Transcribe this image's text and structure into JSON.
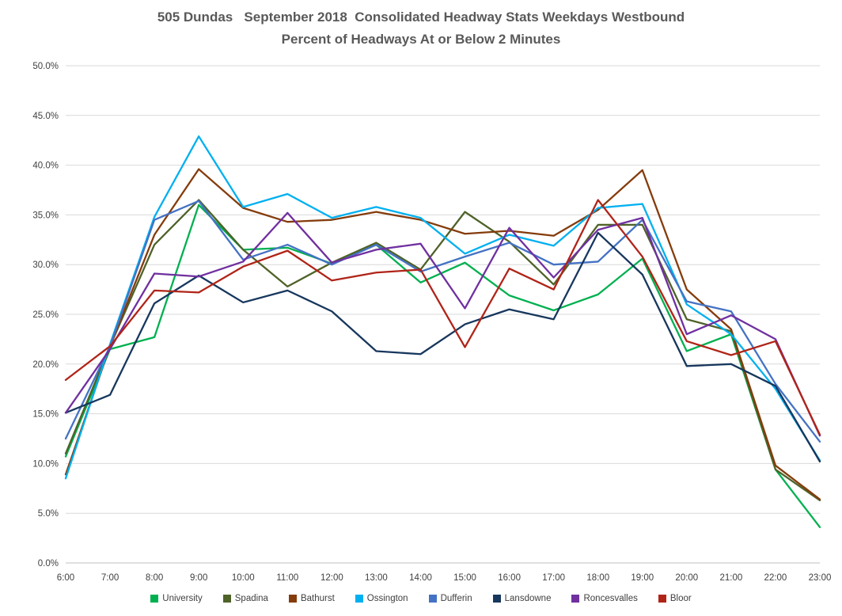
{
  "title": {
    "line1": "505 Dundas   September 2018  Consolidated Headway Stats Weekdays Westbound",
    "line2": "Percent of Headways At or Below 2 Minutes"
  },
  "chart_data": {
    "type": "line",
    "title": "505 Dundas September 2018 Consolidated Headway Stats Weekdays Westbound — Percent of Headways At or Below 2 Minutes",
    "xlabel": "",
    "ylabel": "",
    "ylim": [
      0,
      50
    ],
    "ytick_step": 5,
    "ytick_format": "percent_one_decimal",
    "grid": "horizontal",
    "legend_position": "bottom",
    "categories": [
      "6:00",
      "7:00",
      "8:00",
      "9:00",
      "10:00",
      "11:00",
      "12:00",
      "13:00",
      "14:00",
      "15:00",
      "16:00",
      "17:00",
      "18:00",
      "19:00",
      "20:00",
      "21:00",
      "22:00",
      "23:00"
    ],
    "series": [
      {
        "name": "University",
        "color": "#00B050",
        "values": [
          10.7,
          21.5,
          22.7,
          36.0,
          31.5,
          31.7,
          30.1,
          32.0,
          28.2,
          30.2,
          26.9,
          25.4,
          27.0,
          30.6,
          21.3,
          23.0,
          9.4,
          3.6
        ]
      },
      {
        "name": "Spadina",
        "color": "#4F6228",
        "values": [
          11.0,
          21.8,
          32.0,
          36.5,
          31.5,
          27.8,
          30.2,
          32.2,
          29.5,
          35.3,
          32.3,
          28.0,
          34.0,
          34.0,
          24.5,
          23.3,
          9.4,
          6.3
        ]
      },
      {
        "name": "Bathurst",
        "color": "#843C0C",
        "values": [
          8.9,
          21.8,
          33.0,
          39.6,
          35.7,
          34.3,
          34.5,
          35.3,
          34.5,
          33.1,
          33.4,
          32.9,
          35.5,
          39.5,
          27.5,
          23.5,
          9.8,
          6.4
        ]
      },
      {
        "name": "Ossington",
        "color": "#00B0F0",
        "values": [
          8.5,
          22.0,
          34.8,
          42.9,
          35.8,
          37.1,
          34.7,
          35.8,
          34.7,
          31.1,
          33.0,
          31.9,
          35.7,
          36.1,
          26.0,
          23.0,
          17.5,
          10.3
        ]
      },
      {
        "name": "Dufferin",
        "color": "#4472C4",
        "values": [
          12.5,
          21.8,
          34.5,
          36.4,
          30.5,
          32.0,
          30.0,
          32.0,
          29.3,
          30.8,
          32.2,
          30.0,
          30.3,
          34.5,
          26.3,
          25.3,
          18.0,
          12.2
        ]
      },
      {
        "name": "Lansdowne",
        "color": "#17375D",
        "values": [
          15.1,
          16.9,
          26.1,
          28.9,
          26.2,
          27.4,
          25.3,
          21.3,
          21.0,
          24.0,
          25.5,
          24.5,
          33.2,
          29.0,
          19.8,
          20.0,
          17.8,
          10.2
        ]
      },
      {
        "name": "Roncesvalles",
        "color": "#7030A0",
        "values": [
          15.1,
          21.5,
          29.1,
          28.8,
          30.3,
          35.2,
          30.2,
          31.5,
          32.1,
          25.6,
          33.7,
          28.7,
          33.5,
          34.7,
          23.0,
          24.9,
          22.5,
          12.8
        ]
      },
      {
        "name": "Bloor",
        "color": "#B02418",
        "values": [
          18.4,
          21.8,
          27.4,
          27.2,
          29.8,
          31.4,
          28.4,
          29.2,
          29.5,
          21.7,
          29.6,
          27.5,
          36.5,
          30.8,
          22.3,
          20.9,
          22.3,
          12.9
        ]
      }
    ]
  },
  "style": {
    "gridline_color": "#D9D9D9",
    "axis_line_color": "#BFBFBF",
    "tick_label_color": "#404040",
    "title_color": "#595959"
  }
}
